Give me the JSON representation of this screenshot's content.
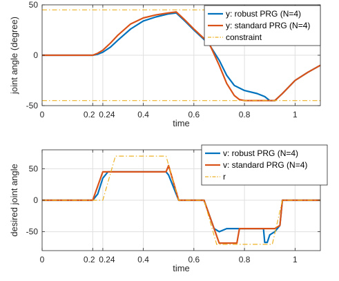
{
  "chart_data": [
    {
      "type": "line",
      "xlabel": "time",
      "ylabel": "joint angle (degree)",
      "xlim": [
        0,
        1.1
      ],
      "ylim": [
        -50,
        50
      ],
      "xticks": [
        "0",
        "0.2",
        "0.24",
        "0.4",
        "0.6",
        "0.8",
        "1"
      ],
      "xtick_values": [
        0,
        0.2,
        0.24,
        0.4,
        0.6,
        0.8,
        1
      ],
      "yticks": [
        "50",
        "0",
        "-50"
      ],
      "ytick_values": [
        50,
        0,
        -50
      ],
      "grid": true,
      "legend_position": "top-right",
      "series": [
        {
          "name": "y: robust PRG (N=4)",
          "color": "#0072BD",
          "style": "solid",
          "x": [
            0,
            0.2,
            0.22,
            0.24,
            0.27,
            0.3,
            0.35,
            0.4,
            0.45,
            0.5,
            0.53,
            0.56,
            0.6,
            0.63,
            0.66,
            0.7,
            0.73,
            0.76,
            0.8,
            0.85,
            0.88,
            0.9,
            0.92,
            0.95,
            1.0,
            1.05,
            1.1
          ],
          "y": [
            0,
            0,
            1,
            3,
            8,
            15,
            26,
            34,
            38,
            41,
            42,
            35,
            25,
            18,
            11,
            -5,
            -20,
            -30,
            -35,
            -38,
            -41,
            -45,
            -45,
            -38,
            -25,
            -17,
            -10
          ]
        },
        {
          "name": "y: standard PRG (N=4)",
          "color": "#D95319",
          "style": "solid",
          "x": [
            0,
            0.2,
            0.22,
            0.24,
            0.27,
            0.3,
            0.35,
            0.4,
            0.45,
            0.5,
            0.53,
            0.56,
            0.6,
            0.63,
            0.66,
            0.7,
            0.73,
            0.76,
            0.78,
            0.8,
            0.85,
            0.9,
            0.92,
            0.95,
            1.0,
            1.05,
            1.1
          ],
          "y": [
            0,
            0,
            2,
            5,
            12,
            20,
            31,
            37,
            40,
            42,
            43,
            36,
            26,
            19,
            12,
            -10,
            -28,
            -40,
            -44,
            -45,
            -45,
            -45,
            -45,
            -38,
            -25,
            -17,
            -10
          ]
        },
        {
          "name": "constraint",
          "color": "#EDB120",
          "style": "dash-dot",
          "segments": [
            {
              "x": [
                0,
                1.1
              ],
              "y": [
                45,
                45
              ]
            },
            {
              "x": [
                0,
                1.1
              ],
              "y": [
                -45,
                -45
              ]
            }
          ]
        }
      ]
    },
    {
      "type": "line",
      "xlabel": "time",
      "ylabel": "desired joint angle",
      "xlim": [
        0,
        1.1
      ],
      "ylim": [
        -80,
        80
      ],
      "xticks": [
        "0",
        "0.2",
        "0.24",
        "0.4",
        "0.6",
        "0.8",
        "1"
      ],
      "xtick_values": [
        0,
        0.2,
        0.24,
        0.4,
        0.6,
        0.8,
        1
      ],
      "yticks": [
        "50",
        "0",
        "-50"
      ],
      "ytick_values": [
        50,
        0,
        -50
      ],
      "grid": true,
      "legend_position": "top-right",
      "series": [
        {
          "name": "v: robust PRG (N=4)",
          "color": "#0072BD",
          "style": "solid",
          "x": [
            0,
            0.2,
            0.22,
            0.24,
            0.26,
            0.3,
            0.35,
            0.4,
            0.45,
            0.49,
            0.5,
            0.54,
            0.64,
            0.68,
            0.7,
            0.73,
            0.8,
            0.85,
            0.875,
            0.88,
            0.89,
            0.9,
            0.92,
            0.94,
            0.95,
            1.0,
            1.1
          ],
          "y": [
            0,
            0,
            10,
            35,
            45,
            45,
            45,
            45,
            45,
            45,
            40,
            0,
            0,
            -45,
            -50,
            -45,
            -45,
            -45,
            -45,
            -67,
            -67,
            -55,
            -50,
            -40,
            0,
            0,
            0
          ]
        },
        {
          "name": "v: standard PRG (N=4)",
          "color": "#D95319",
          "style": "solid",
          "x": [
            0,
            0.2,
            0.24,
            0.3,
            0.35,
            0.4,
            0.45,
            0.49,
            0.5,
            0.54,
            0.64,
            0.68,
            0.7,
            0.75,
            0.77,
            0.78,
            0.8,
            0.85,
            0.9,
            0.92,
            0.94,
            0.95,
            1.0,
            1.1
          ],
          "y": [
            0,
            0,
            45,
            45,
            45,
            45,
            45,
            45,
            55,
            0,
            0,
            -45,
            -68,
            -68,
            -68,
            -45,
            -45,
            -45,
            -45,
            -45,
            -40,
            0,
            0,
            0
          ]
        },
        {
          "name": "r",
          "color": "#EDB120",
          "style": "dash-dot",
          "x": [
            0,
            0.24,
            0.29,
            0.49,
            0.54,
            0.64,
            0.69,
            0.91,
            0.95,
            1.1
          ],
          "y": [
            0,
            0,
            70,
            70,
            0,
            0,
            -70,
            -70,
            0,
            0
          ]
        }
      ]
    }
  ]
}
